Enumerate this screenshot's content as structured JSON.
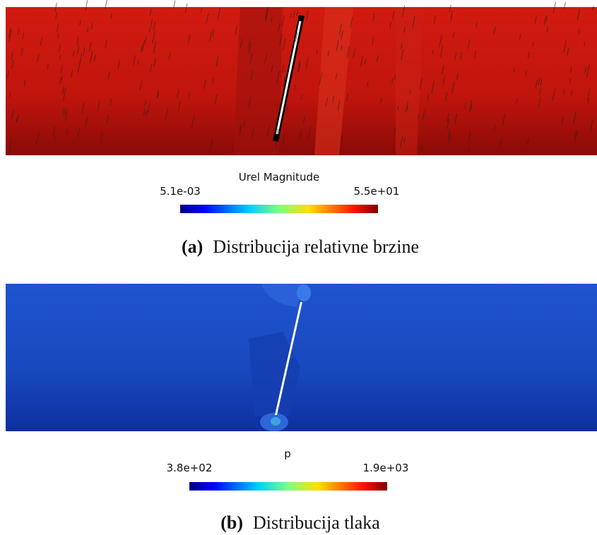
{
  "figure_a": {
    "colorbar_title": "Urel Magnitude",
    "colorbar_min": "5.1e-03",
    "colorbar_max": "5.5e+01",
    "caption_label": "(a)",
    "caption": "Distribucija relativne brzine"
  },
  "figure_b": {
    "colorbar_title": "p",
    "colorbar_min": "3.8e+02",
    "colorbar_max": "1.9e+03",
    "caption_label": "(b)",
    "caption": "Distribucija tlaka"
  }
}
